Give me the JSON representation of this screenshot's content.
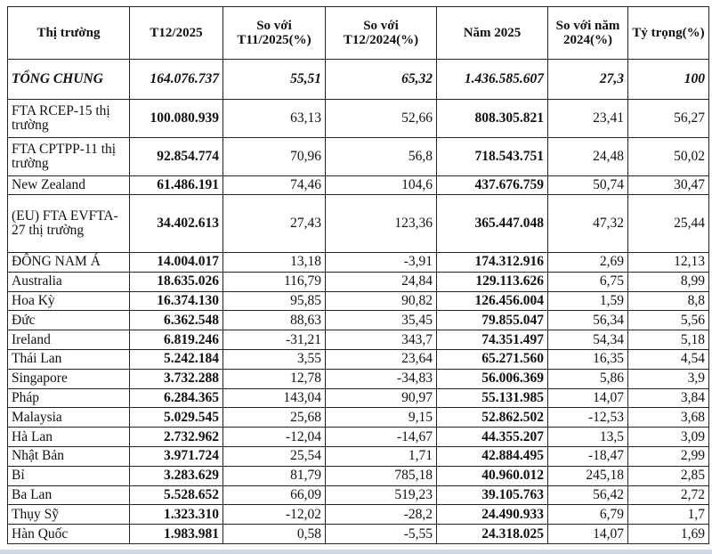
{
  "headers": [
    "Thị trường",
    "T12/2025",
    "So với T11/2025(%)",
    "So với T12/2024(%)",
    "Năm 2025",
    "So với năm 2024(%)",
    "Tỷ trọng(%)"
  ],
  "total": [
    "TỔNG CHUNG",
    "164.076.737",
    "55,51",
    "65,32",
    "1.436.585.607",
    "27,3",
    "100"
  ],
  "rows": [
    [
      "FTA RCEP-15 thị trường",
      "100.080.939",
      "63,13",
      "52,66",
      "808.305.821",
      "23,41",
      "56,27"
    ],
    [
      "FTA CPTPP-11 thị trường",
      "92.854.774",
      "70,96",
      "56,8",
      "718.543.751",
      "24,48",
      "50,02"
    ],
    [
      "New Zealand",
      "61.486.191",
      "74,46",
      "104,6",
      "437.676.759",
      "50,74",
      "30,47"
    ],
    [
      "(EU) FTA EVFTA-27 thị trường",
      "34.402.613",
      "27,43",
      "123,36",
      "365.447.048",
      "47,32",
      "25,44"
    ],
    [
      "ĐÔNG NAM Á",
      "14.004.017",
      "13,18",
      "-3,91",
      "174.312.916",
      "2,69",
      "12,13"
    ],
    [
      "Australia",
      "18.635.026",
      "116,79",
      "24,84",
      "129.113.626",
      "6,75",
      "8,99"
    ],
    [
      "Hoa Kỳ",
      "16.374.130",
      "95,85",
      "90,82",
      "126.456.004",
      "1,59",
      "8,8"
    ],
    [
      "Đức",
      "6.362.548",
      "88,63",
      "35,45",
      "79.855.047",
      "56,34",
      "5,56"
    ],
    [
      "Ireland",
      "6.819.246",
      "-31,21",
      "343,7",
      "74.351.497",
      "54,34",
      "5,18"
    ],
    [
      "Thái Lan",
      "5.242.184",
      "3,55",
      "23,64",
      "65.271.560",
      "16,35",
      "4,54"
    ],
    [
      "Singapore",
      "3.732.288",
      "12,78",
      "-34,83",
      "56.006.369",
      "5,86",
      "3,9"
    ],
    [
      "Pháp",
      "6.284.365",
      "143,04",
      "90,97",
      "55.131.985",
      "14,07",
      "3,84"
    ],
    [
      "Malaysia",
      "5.029.545",
      "25,68",
      "9,15",
      "52.862.502",
      "-12,53",
      "3,68"
    ],
    [
      "Hà Lan",
      "2.732.962",
      "-12,04",
      "-14,67",
      "44.355.207",
      "13,5",
      "3,09"
    ],
    [
      "Nhật Bản",
      "3.971.724",
      "25,54",
      "1,71",
      "42.884.495",
      "-18,47",
      "2,99"
    ],
    [
      "Bỉ",
      "3.283.629",
      "81,79",
      "785,18",
      "40.960.012",
      "245,18",
      "2,85"
    ],
    [
      "Ba Lan",
      "5.528.652",
      "66,09",
      "519,23",
      "39.105.763",
      "56,42",
      "2,72"
    ],
    [
      "Thụy Sỹ",
      "1.323.310",
      "-12,02",
      "-28,2",
      "24.490.933",
      "6,79",
      "1,7"
    ],
    [
      "Hàn Quốc",
      "1.983.981",
      "0,58",
      "-5,55",
      "24.318.025",
      "14,07",
      "1,69"
    ]
  ]
}
